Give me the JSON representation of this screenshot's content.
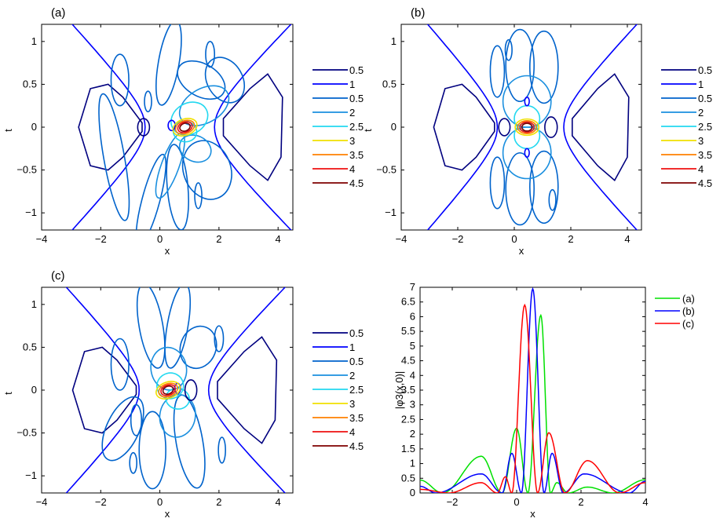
{
  "chart_data": [
    {
      "type": "contour",
      "panel_label": "(a)",
      "xlabel": "x",
      "ylabel": "t",
      "xlim": [
        -4,
        4.5
      ],
      "ylim": [
        -1.2,
        1.2
      ],
      "xticks": [
        "-4",
        "-2",
        "0",
        "2",
        "4"
      ],
      "yticks": [
        "-1",
        "-0.5",
        "0",
        "0.5",
        "1"
      ],
      "legend": [
        {
          "label": "0.5",
          "color": "#00007f"
        },
        {
          "label": "1",
          "color": "#0000ff"
        },
        {
          "label": "0.5",
          "color": "#0063cc"
        },
        {
          "label": "2",
          "color": "#1a8fdf"
        },
        {
          "label": "2.5",
          "color": "#22d8f0"
        },
        {
          "label": "3",
          "color": "#f0e000"
        },
        {
          "label": "3.5",
          "color": "#ff8000"
        },
        {
          "label": "4",
          "color": "#ee1010"
        },
        {
          "label": "4.5",
          "color": "#7f0000"
        }
      ]
    },
    {
      "type": "contour",
      "panel_label": "(b)",
      "xlabel": "x",
      "ylabel": "t",
      "xlim": [
        -4,
        4.5
      ],
      "ylim": [
        -1.2,
        1.2
      ],
      "xticks": [
        "-4",
        "-2",
        "0",
        "2",
        "4"
      ],
      "yticks": [
        "-1",
        "-0.5",
        "0",
        "0.5",
        "1"
      ],
      "legend": [
        {
          "label": "0.5",
          "color": "#00007f"
        },
        {
          "label": "1",
          "color": "#0000ff"
        },
        {
          "label": "0.5",
          "color": "#0063cc"
        },
        {
          "label": "2",
          "color": "#1a8fdf"
        },
        {
          "label": "2.5",
          "color": "#22d8f0"
        },
        {
          "label": "3",
          "color": "#f0e000"
        },
        {
          "label": "3.5",
          "color": "#ff8000"
        },
        {
          "label": "4",
          "color": "#ee1010"
        },
        {
          "label": "4.5",
          "color": "#7f0000"
        }
      ]
    },
    {
      "type": "contour",
      "panel_label": "(c)",
      "xlabel": "x",
      "ylabel": "t",
      "xlim": [
        -4,
        4.5
      ],
      "ylim": [
        -1.2,
        1.2
      ],
      "xticks": [
        "-4",
        "-2",
        "0",
        "2",
        "4"
      ],
      "yticks": [
        "-1",
        "-0.5",
        "0",
        "0.5",
        "1"
      ],
      "legend": [
        {
          "label": "0.5",
          "color": "#00007f"
        },
        {
          "label": "1",
          "color": "#0000ff"
        },
        {
          "label": "0.5",
          "color": "#0063cc"
        },
        {
          "label": "2",
          "color": "#1a8fdf"
        },
        {
          "label": "2.5",
          "color": "#22d8f0"
        },
        {
          "label": "3",
          "color": "#f0e000"
        },
        {
          "label": "3.5",
          "color": "#ff8000"
        },
        {
          "label": "4",
          "color": "#ee1010"
        },
        {
          "label": "4.5",
          "color": "#7f0000"
        }
      ]
    },
    {
      "type": "line",
      "xlabel": "x",
      "ylabel": "|φ3(x,0)|",
      "xlim": [
        -3,
        4
      ],
      "ylim": [
        0,
        7
      ],
      "xticks": [
        "-2",
        "0",
        "2",
        "4"
      ],
      "yticks": [
        "0",
        "0.5",
        "1",
        "1.5",
        "2",
        "2.5",
        "3",
        "3.5",
        "4",
        "4.5",
        "5",
        "5.5",
        "6",
        "6.5",
        "7"
      ],
      "series": [
        {
          "name": "(a)",
          "color": "#00e000",
          "peaks": [
            {
              "x": -1.1,
              "y": 1.25
            },
            {
              "x": 0.0,
              "y": 2.2
            },
            {
              "x": 0.75,
              "y": 6.05
            },
            {
              "x": 1.25,
              "y": 0.35
            },
            {
              "x": 2.2,
              "y": 0.2
            },
            {
              "x": 4.0,
              "y": 0.45
            }
          ],
          "zeros": [
            -2.3,
            -0.45,
            0.35,
            1.05,
            1.6,
            3.0
          ]
        },
        {
          "name": "(b)",
          "color": "#0000ff",
          "peaks": [
            {
              "x": -1.1,
              "y": 0.65
            },
            {
              "x": -0.15,
              "y": 1.35
            },
            {
              "x": 0.5,
              "y": 6.95
            },
            {
              "x": 1.1,
              "y": 1.35
            },
            {
              "x": 2.1,
              "y": 0.65
            },
            {
              "x": 4.0,
              "y": 0.4
            }
          ],
          "zeros": [
            -2.5,
            -0.45,
            0.15,
            0.85,
            1.45,
            3.5
          ]
        },
        {
          "name": "(c)",
          "color": "#ff0000",
          "peaks": [
            {
              "x": -1.1,
              "y": 0.35
            },
            {
              "x": -0.35,
              "y": 0.55
            },
            {
              "x": 0.25,
              "y": 6.4
            },
            {
              "x": 1.0,
              "y": 2.05
            },
            {
              "x": 2.2,
              "y": 1.1
            },
            {
              "x": 4.0,
              "y": 0.35
            }
          ],
          "zeros": [
            -2.1,
            -0.6,
            -0.15,
            0.65,
            1.5,
            3.2
          ]
        }
      ]
    }
  ]
}
